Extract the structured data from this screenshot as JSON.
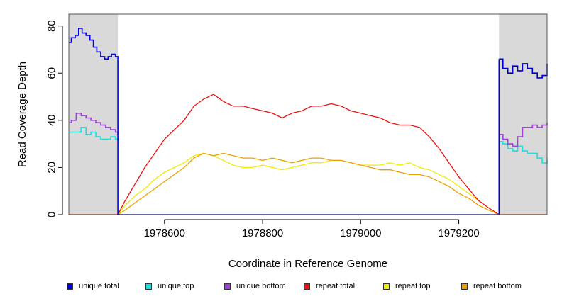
{
  "chart_data": {
    "type": "line",
    "xlabel": "Coordinate in Reference Genome",
    "ylabel": "Read Coverage Depth",
    "xlim": [
      1978405,
      1979380
    ],
    "ylim": [
      0,
      85
    ],
    "x_ticks": [
      1978600,
      1978800,
      1979000,
      1979200
    ],
    "x_tick_labels": [
      "1978600",
      "1978800",
      "1979000",
      "1979200"
    ],
    "y_ticks": [
      0,
      20,
      40,
      60,
      80
    ],
    "y_tick_labels": [
      "0",
      "20",
      "40",
      "60",
      "80"
    ],
    "shaded_regions": [
      [
        1978405,
        1978505
      ],
      [
        1979282,
        1979380
      ]
    ],
    "shade_color": "#d9d9d9",
    "legend_position": "bottom",
    "series": [
      {
        "name": "unique total",
        "color": "#0000dd",
        "step": true,
        "segments": [
          {
            "x": [
              1978405,
              1978410,
              1978418,
              1978425,
              1978432,
              1978440,
              1978448,
              1978455,
              1978462,
              1978470,
              1978478,
              1978485,
              1978492,
              1978500,
              1978505
            ],
            "y": [
              73,
              75,
              76,
              79,
              77,
              76,
              74,
              71,
              69,
              67,
              66,
              67,
              68,
              67,
              66
            ]
          },
          {
            "x": [
              1978505,
              1978505,
              1979282,
              1979282
            ],
            "y": [
              66,
              0,
              0,
              66
            ]
          },
          {
            "x": [
              1979282,
              1979290,
              1979300,
              1979310,
              1979320,
              1979330,
              1979340,
              1979350,
              1979360,
              1979370,
              1979380
            ],
            "y": [
              66,
              62,
              60,
              63,
              61,
              64,
              62,
              60,
              58,
              59,
              64
            ]
          }
        ]
      },
      {
        "name": "unique top",
        "color": "#22dddd",
        "step": true,
        "segments": [
          {
            "x": [
              1978405,
              1978420,
              1978430,
              1978440,
              1978450,
              1978460,
              1978470,
              1978480,
              1978490,
              1978500,
              1978505
            ],
            "y": [
              35,
              35,
              37,
              34,
              35,
              33,
              32,
              32,
              33,
              32,
              33
            ]
          },
          {
            "x": [
              1979282,
              1979290,
              1979300,
              1979310,
              1979320,
              1979330,
              1979340,
              1979350,
              1979360,
              1979370,
              1979380
            ],
            "y": [
              31,
              30,
              28,
              27,
              29,
              27,
              26,
              26,
              24,
              22,
              24
            ]
          }
        ]
      },
      {
        "name": "unique bottom",
        "color": "#a040e0",
        "step": true,
        "segments": [
          {
            "x": [
              1978405,
              1978410,
              1978420,
              1978430,
              1978440,
              1978450,
              1978460,
              1978470,
              1978480,
              1978490,
              1978500,
              1978505
            ],
            "y": [
              39,
              40,
              43,
              42,
              41,
              40,
              39,
              38,
              37,
              36,
              35,
              34
            ]
          },
          {
            "x": [
              1979282,
              1979290,
              1979300,
              1979310,
              1979320,
              1979330,
              1979340,
              1979350,
              1979360,
              1979370,
              1979380
            ],
            "y": [
              34,
              32,
              30,
              29,
              33,
              37,
              37,
              38,
              37,
              38,
              39
            ]
          }
        ]
      },
      {
        "name": "repeat total",
        "color": "#ee1111",
        "step": false,
        "segments": [
          {
            "x": [
              1978405,
              1978505,
              1978520,
              1978540,
              1978560,
              1978580,
              1978600,
              1978620,
              1978640,
              1978660,
              1978680,
              1978700,
              1978720,
              1978740,
              1978760,
              1978780,
              1978800,
              1978820,
              1978840,
              1978860,
              1978880,
              1978900,
              1978920,
              1978940,
              1978960,
              1978980,
              1979000,
              1979020,
              1979040,
              1979060,
              1979080,
              1979100,
              1979120,
              1979140,
              1979160,
              1979180,
              1979200,
              1979220,
              1979240,
              1979260,
              1979282,
              1979380
            ],
            "y": [
              0,
              0,
              6,
              13,
              20,
              26,
              32,
              36,
              40,
              46,
              49,
              51,
              48,
              46,
              46,
              45,
              44,
              43,
              41,
              43,
              44,
              46,
              46,
              47,
              46,
              44,
              43,
              42,
              41,
              39,
              38,
              38,
              37,
              33,
              28,
              22,
              16,
              11,
              6,
              3,
              0,
              0
            ]
          }
        ]
      },
      {
        "name": "repeat top",
        "color": "#eeee00",
        "step": false,
        "segments": [
          {
            "x": [
              1978505,
              1978520,
              1978540,
              1978560,
              1978580,
              1978600,
              1978620,
              1978640,
              1978660,
              1978680,
              1978700,
              1978720,
              1978740,
              1978760,
              1978780,
              1978800,
              1978820,
              1978840,
              1978860,
              1978880,
              1978900,
              1978920,
              1978940,
              1978960,
              1978980,
              1979000,
              1979020,
              1979040,
              1979060,
              1979080,
              1979100,
              1979120,
              1979140,
              1979160,
              1979180,
              1979200,
              1979220,
              1979240,
              1979260,
              1979282
            ],
            "y": [
              0,
              4,
              8,
              11,
              15,
              18,
              20,
              22,
              25,
              26,
              25,
              23,
              21,
              20,
              20,
              21,
              20,
              19,
              20,
              21,
              22,
              22,
              23,
              23,
              22,
              21,
              21,
              21,
              22,
              21,
              22,
              20,
              19,
              17,
              15,
              12,
              9,
              6,
              3,
              0
            ]
          }
        ]
      },
      {
        "name": "repeat bottom",
        "color": "#eea000",
        "step": false,
        "segments": [
          {
            "x": [
              1978405,
              1978505,
              1978520,
              1978540,
              1978560,
              1978580,
              1978600,
              1978620,
              1978640,
              1978660,
              1978680,
              1978700,
              1978720,
              1978740,
              1978760,
              1978780,
              1978800,
              1978820,
              1978840,
              1978860,
              1978880,
              1978900,
              1978920,
              1978940,
              1978960,
              1978980,
              1979000,
              1979020,
              1979040,
              1979060,
              1979080,
              1979100,
              1979120,
              1979140,
              1979160,
              1979180,
              1979200,
              1979220,
              1979240,
              1979260,
              1979282,
              1979380
            ],
            "y": [
              0,
              0,
              2,
              5,
              8,
              11,
              14,
              17,
              20,
              24,
              26,
              25,
              26,
              25,
              24,
              24,
              23,
              24,
              23,
              22,
              23,
              24,
              24,
              23,
              23,
              22,
              21,
              20,
              19,
              19,
              18,
              17,
              17,
              16,
              14,
              12,
              9,
              7,
              4,
              2,
              0,
              0
            ]
          }
        ]
      }
    ]
  }
}
